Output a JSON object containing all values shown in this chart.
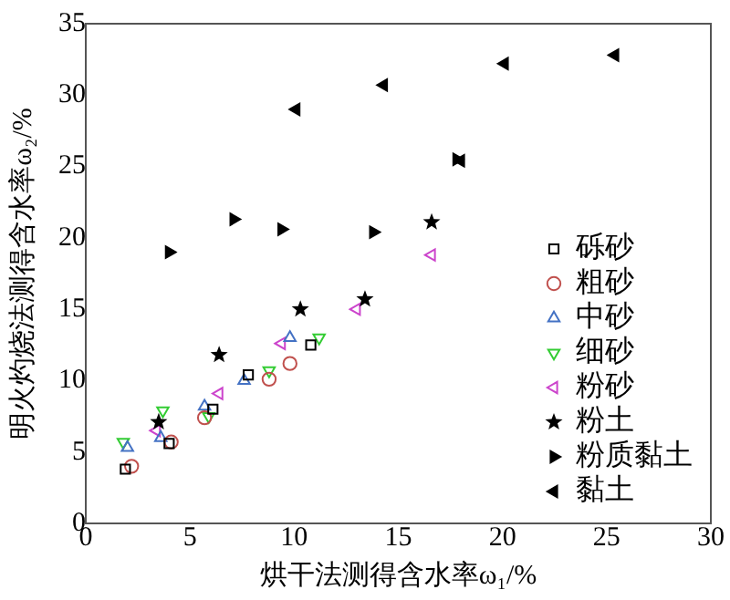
{
  "chart_data": {
    "type": "scatter",
    "xlabel": "烘干法测得含水率ω₁/%",
    "ylabel": "明火灼烧法测得含水率ω₂/%",
    "xlim": [
      0,
      30
    ],
    "xticks": [
      0,
      5,
      10,
      15,
      20,
      25,
      30
    ],
    "ylim": [
      0,
      35
    ],
    "yticks": [
      0,
      5,
      10,
      15,
      20,
      25,
      30,
      35
    ],
    "grid": false,
    "legend": "bottom right",
    "series": [
      {
        "name": "砾砂",
        "color": "#000000",
        "marker": "square-open",
        "x": [
          1.9,
          4.0,
          6.1,
          7.8,
          10.8
        ],
        "values": [
          3.8,
          5.6,
          8.0,
          10.4,
          12.5
        ]
      },
      {
        "name": "粗砂",
        "color": "#c0504d",
        "marker": "circle-open",
        "x": [
          2.2,
          4.1,
          5.7,
          8.8,
          9.8
        ],
        "values": [
          4.0,
          5.7,
          7.4,
          10.1,
          11.2
        ]
      },
      {
        "name": "中砂",
        "color": "#4472c4",
        "marker": "triangle-open",
        "x": [
          2.0,
          3.6,
          5.7,
          7.6,
          9.8
        ],
        "values": [
          5.3,
          6.0,
          8.2,
          10.0,
          13.0
        ]
      },
      {
        "name": "细砂",
        "color": "#33cc33",
        "marker": "triangle-down-open",
        "x": [
          1.8,
          3.7,
          5.9,
          8.8,
          11.2
        ],
        "values": [
          5.7,
          7.9,
          7.5,
          10.7,
          13.0
        ]
      },
      {
        "name": "粉砂",
        "color": "#cc44cc",
        "marker": "triangle-left-open",
        "x": [
          3.4,
          6.4,
          9.4,
          13.0,
          16.6
        ],
        "values": [
          6.5,
          9.1,
          12.6,
          15.0,
          18.8
        ]
      },
      {
        "name": "粉土",
        "color": "#000000",
        "marker": "star",
        "x": [
          3.5,
          6.4,
          10.3,
          13.4,
          16.6
        ],
        "values": [
          7.1,
          11.8,
          15.0,
          15.7,
          21.1
        ]
      },
      {
        "name": "粉质黏土",
        "color": "#000000",
        "marker": "triangle-right",
        "x": [
          4.0,
          7.1,
          9.4,
          13.8,
          17.8
        ],
        "values": [
          19.0,
          21.3,
          20.6,
          20.4,
          25.5
        ]
      },
      {
        "name": "黏土",
        "color": "#000000",
        "marker": "triangle-left",
        "x": [
          10.1,
          14.3,
          18.0,
          20.1,
          25.4
        ],
        "values": [
          29.0,
          30.7,
          25.4,
          32.2,
          32.8
        ]
      }
    ]
  }
}
